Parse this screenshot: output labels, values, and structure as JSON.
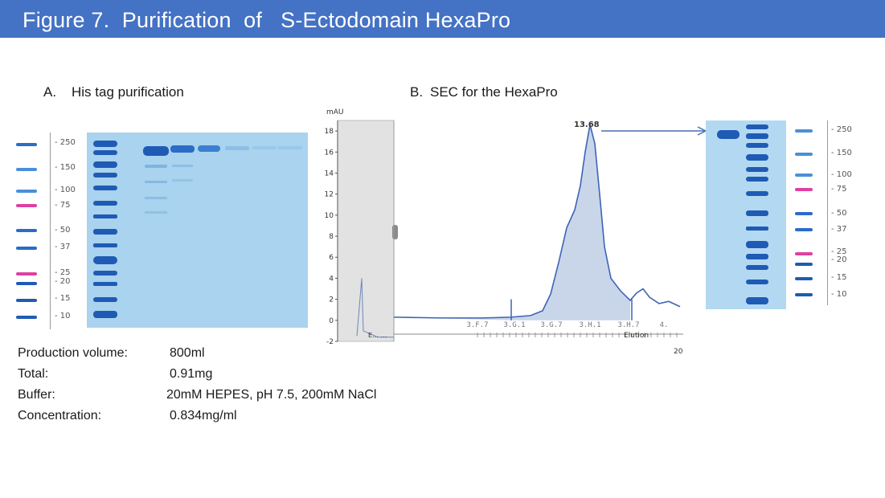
{
  "title": "Figure 7.  Purification  of   S-Ectodomain HexaPro",
  "panel_a": {
    "label": "A.",
    "heading": "His tag purification",
    "mw_markers": [
      "250",
      "150",
      "100",
      "75",
      "50",
      "37",
      "25",
      "20",
      "15",
      "10"
    ],
    "colors": {
      "blue_band": "#2a6cc8",
      "pink_band": "#e040a0",
      "gel": "#a9d3ee",
      "ladder_lane": "#1f5bb5"
    }
  },
  "panel_b": {
    "label": "B.",
    "heading": "SEC for the HexaPro",
    "gel_mw_markers": [
      "250",
      "150",
      "100",
      "75",
      "50",
      "37",
      "25",
      "20",
      "15",
      "10"
    ]
  },
  "chart_data": {
    "type": "area",
    "ylabel": "mAU",
    "y_ticks": [
      "18",
      "16",
      "14",
      "12",
      "10",
      "8",
      "6",
      "4",
      "2",
      "0",
      "-2"
    ],
    "ylim": [
      -2,
      19
    ],
    "x_fraction_labels": [
      "3.F.7",
      "3.G.1",
      "3.G.7",
      "3.H.1",
      "3.H.7",
      "4."
    ],
    "x_axis_footer": "Elution",
    "x_axis_number": "20",
    "left_panel_text": "E…  …",
    "peak_label": "13.68",
    "peak_value_mAU": 18.6,
    "fill_color": "#c9d6ea",
    "line_color": "#3c64b4"
  },
  "details": [
    {
      "label": "Production volume:",
      "value": "800ml"
    },
    {
      "label": "Total:",
      "value": "0.91mg"
    },
    {
      "label": "Buffer:",
      "value": "20mM HEPES, pH 7.5, 200mM NaCl"
    },
    {
      "label": "Concentration:",
      "value": "0.834mg/ml"
    }
  ]
}
